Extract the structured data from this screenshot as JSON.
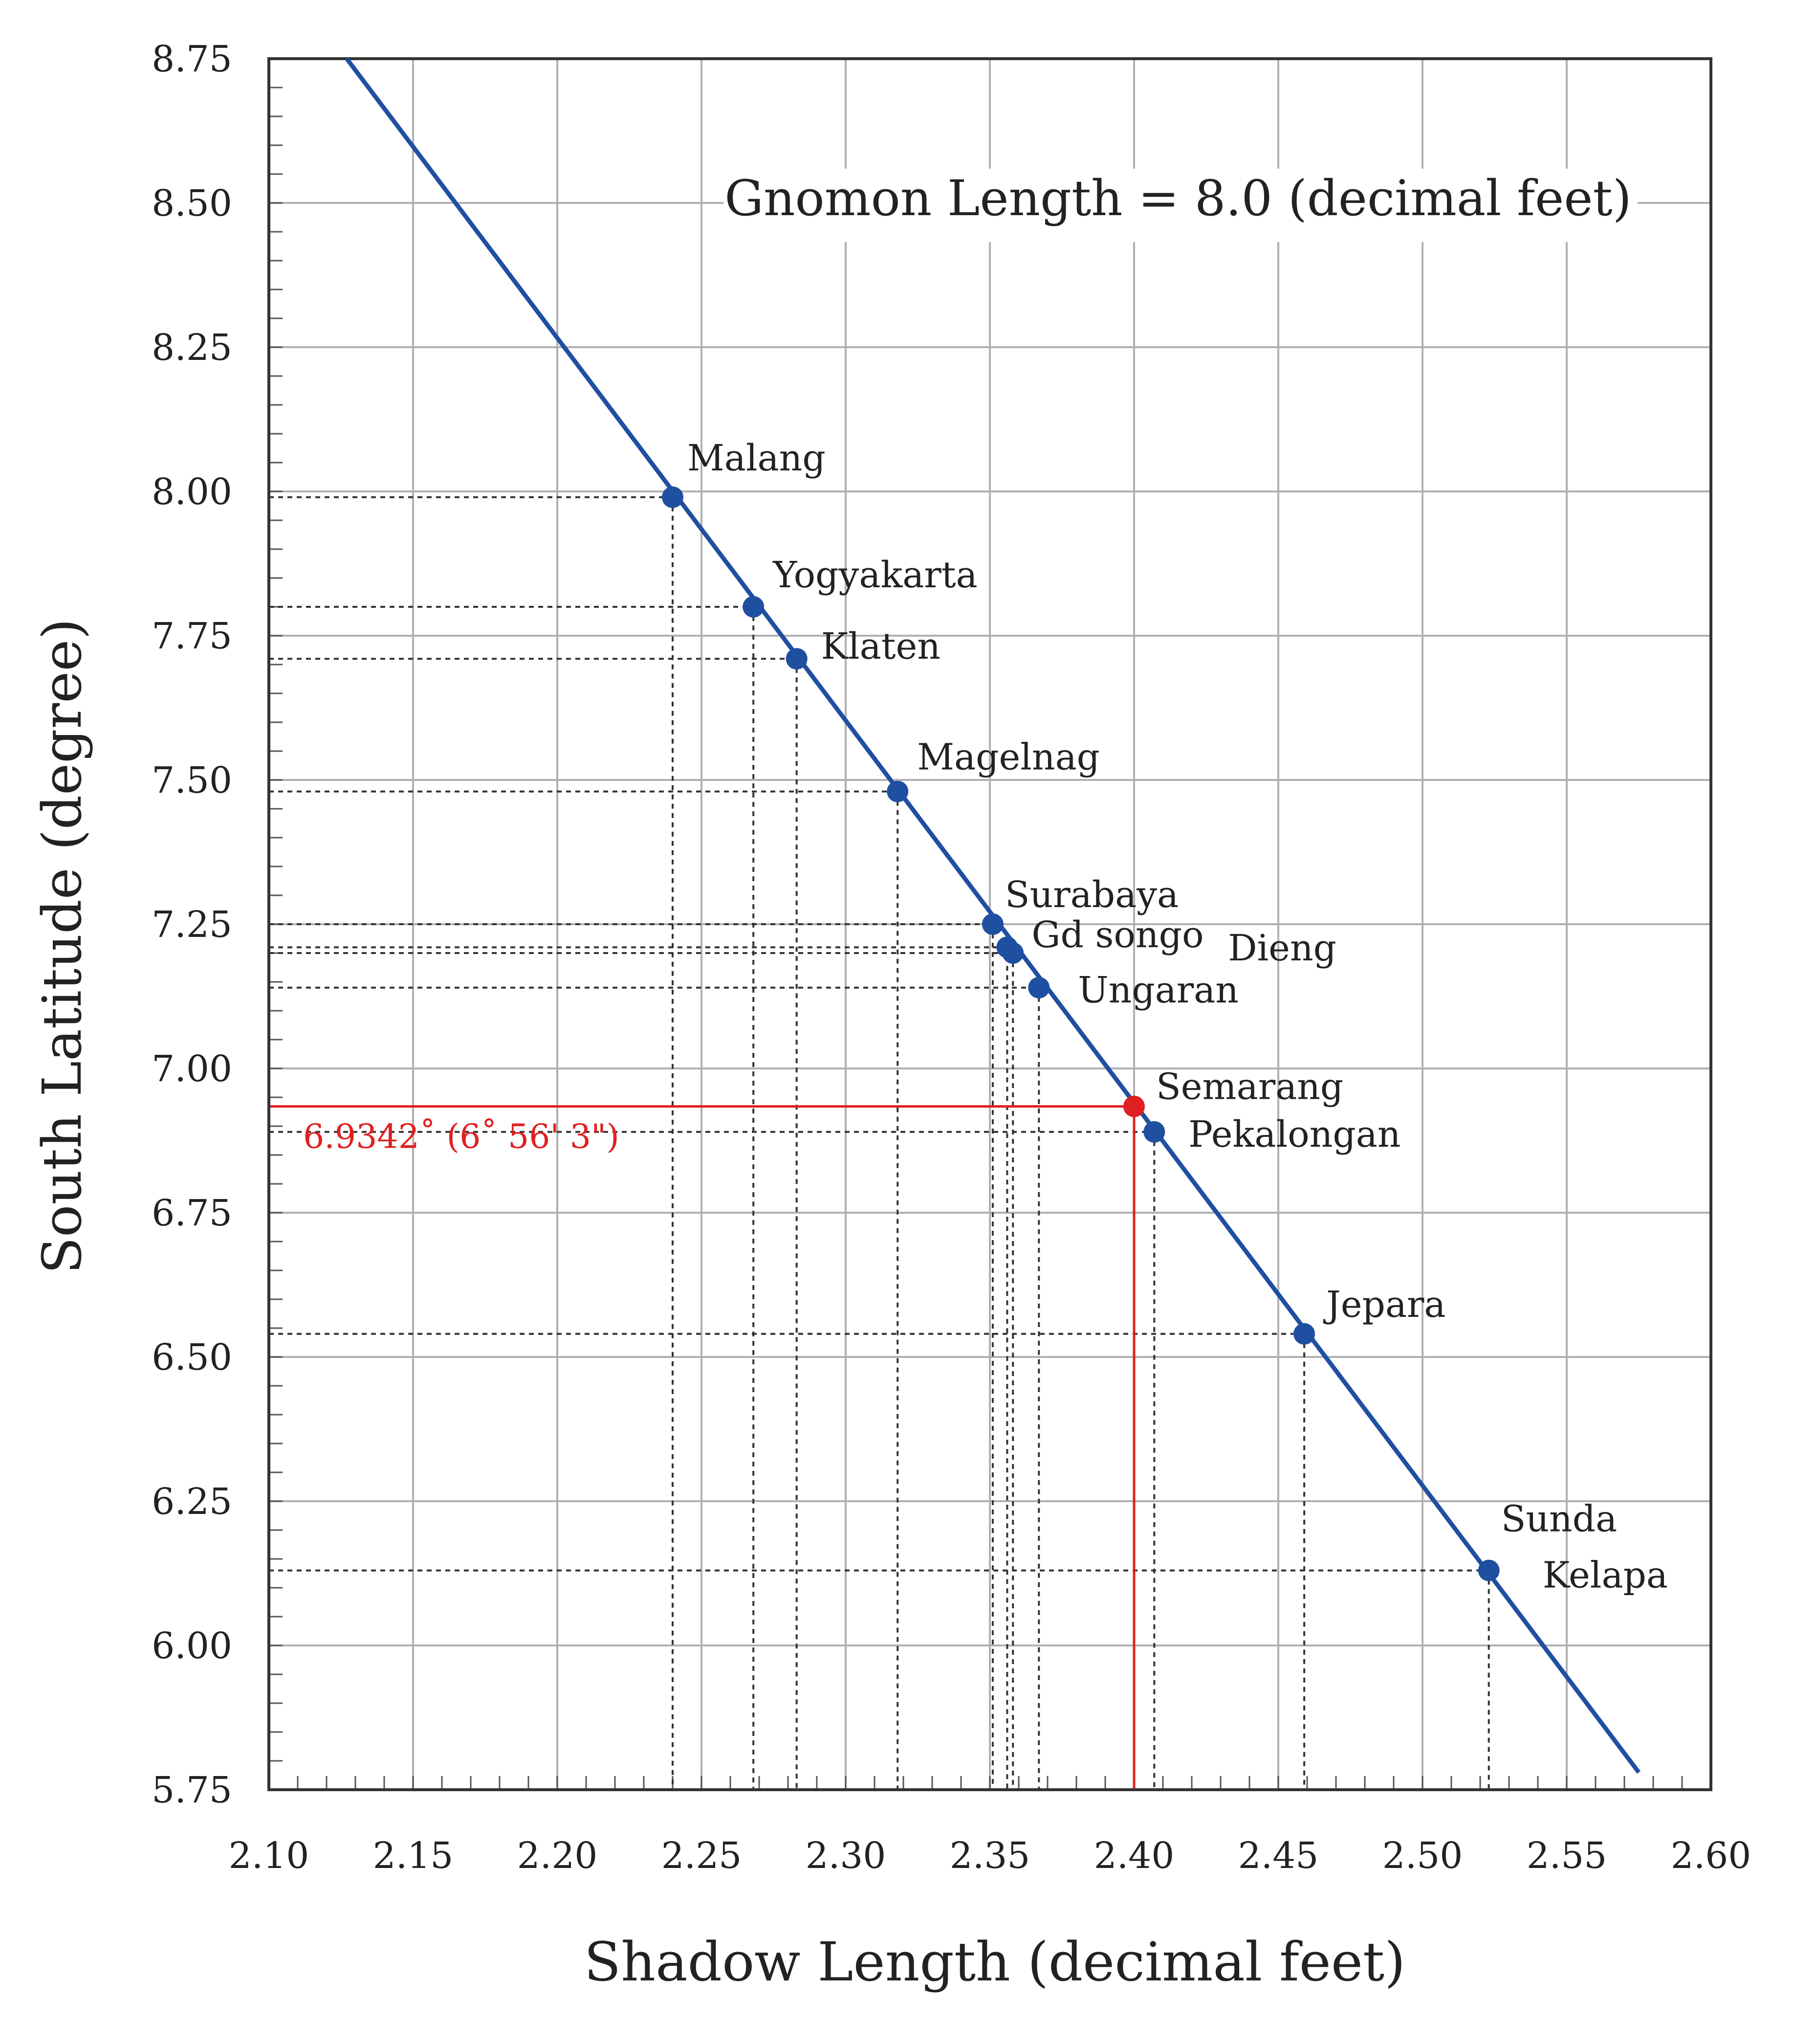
{
  "chart_data": {
    "type": "scatter",
    "xlabel": "Shadow Length (decimal feet)",
    "ylabel": "South Latitude (degree)",
    "xlim": [
      2.1,
      2.6
    ],
    "ylim": [
      5.75,
      8.75
    ],
    "x_ticks": [
      "2.10",
      "2.15",
      "2.20",
      "2.25",
      "2.30",
      "2.35",
      "2.40",
      "2.45",
      "2.50",
      "2.55",
      "2.60"
    ],
    "y_ticks": [
      "8.75",
      "8.50",
      "8.25",
      "8.00",
      "7.75",
      "7.50",
      "7.25",
      "7.00",
      "6.75",
      "6.50",
      "6.25",
      "6.00",
      "5.75"
    ],
    "highlight_x_tick": "2.40",
    "grid": true,
    "annotation": "Gnomon Length = 8.0 (decimal feet)",
    "fit_line": {
      "x": [
        2.127,
        2.575
      ],
      "y": [
        8.75,
        5.78
      ]
    },
    "series": [
      {
        "points": [
          {
            "label": "Malang",
            "x": 2.24,
            "y": 7.99
          },
          {
            "label": "Yogyakarta",
            "x": 2.268,
            "y": 7.8
          },
          {
            "label": "Klaten",
            "x": 2.283,
            "y": 7.71
          },
          {
            "label": "Magelnag",
            "x": 2.318,
            "y": 7.48
          },
          {
            "label": "Surabaya",
            "x": 2.351,
            "y": 7.25
          },
          {
            "label": "Gd songo",
            "x": 2.356,
            "y": 7.21
          },
          {
            "label": "Dieng",
            "x": 2.358,
            "y": 7.2
          },
          {
            "label": "Ungaran",
            "x": 2.367,
            "y": 7.14
          },
          {
            "label": "Pekalongan",
            "x": 2.407,
            "y": 6.89
          },
          {
            "label": "Jepara",
            "x": 2.459,
            "y": 6.54
          },
          {
            "label": "Sunda",
            "label2": "Kelapa",
            "x": 2.523,
            "y": 6.13
          }
        ]
      }
    ],
    "highlight_point": {
      "label": "Semarang",
      "x": 2.4,
      "y": 6.9342,
      "note": "6.9342˚ (6˚ 56' 3\")"
    },
    "colors": {
      "line": "#1f4fa0",
      "point": "#1f4fa0",
      "highlight": "#e02020",
      "grid": "#b0b0b0",
      "frame": "#333333"
    }
  }
}
